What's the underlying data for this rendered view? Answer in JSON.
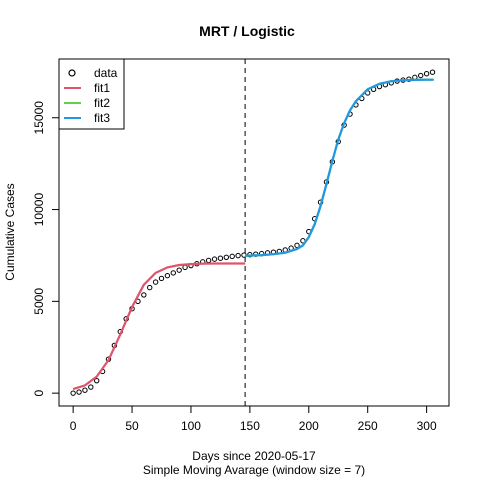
{
  "chart_data": {
    "type": "scatter",
    "title": "MRT / Logistic",
    "xlabel": "Days since 2020-05-17",
    "xlabel2": "Simple Moving Avarage (window size = 7)",
    "ylabel": "Cumulative Cases",
    "xlim": [
      -12,
      319
    ],
    "ylim": [
      -700,
      18200
    ],
    "x_ticks": [
      0,
      50,
      100,
      150,
      200,
      250,
      300
    ],
    "y_ticks": [
      0,
      5000,
      10000,
      15000
    ],
    "breakpoint_x": 146,
    "legend": {
      "position": "top-left",
      "entries": [
        {
          "label": "data",
          "symbol": "circle",
          "color": "#000000"
        },
        {
          "label": "fit1",
          "symbol": "line",
          "color": "#DF536B"
        },
        {
          "label": "fit2",
          "symbol": "line",
          "color": "#61D04F"
        },
        {
          "label": "fit3",
          "symbol": "line",
          "color": "#2297E6"
        }
      ]
    },
    "data": {
      "name": "data",
      "x": [
        0,
        5,
        10,
        15,
        20,
        25,
        30,
        35,
        40,
        45,
        50,
        55,
        60,
        65,
        70,
        75,
        80,
        85,
        90,
        95,
        100,
        105,
        110,
        115,
        120,
        125,
        130,
        135,
        140,
        145,
        150,
        155,
        160,
        165,
        170,
        175,
        180,
        185,
        190,
        195,
        200,
        205,
        210,
        215,
        220,
        225,
        230,
        235,
        240,
        245,
        250,
        255,
        260,
        265,
        270,
        275,
        280,
        285,
        290,
        295,
        300,
        305
      ],
      "y": [
        0,
        60,
        160,
        330,
        680,
        1180,
        1850,
        2600,
        3350,
        4050,
        4600,
        5000,
        5350,
        5750,
        6050,
        6250,
        6400,
        6550,
        6700,
        6850,
        6950,
        7050,
        7150,
        7230,
        7300,
        7350,
        7400,
        7450,
        7490,
        7520,
        7540,
        7570,
        7600,
        7640,
        7680,
        7720,
        7800,
        7900,
        8050,
        8300,
        8800,
        9500,
        10400,
        11500,
        12600,
        13700,
        14600,
        15200,
        15700,
        16050,
        16350,
        16550,
        16700,
        16800,
        16900,
        17000,
        17050,
        17100,
        17200,
        17300,
        17400,
        17480
      ]
    },
    "series": [
      {
        "name": "fit1",
        "color": "#DF536B",
        "x": [
          0,
          10,
          20,
          30,
          40,
          50,
          60,
          70,
          80,
          90,
          100,
          110,
          120,
          130,
          140,
          146
        ],
        "y": [
          220,
          420,
          900,
          1800,
          3200,
          4700,
          5900,
          6550,
          6850,
          6980,
          7030,
          7050,
          7060,
          7060,
          7060,
          7060
        ]
      },
      {
        "name": "fit2",
        "color": "#61D04F",
        "x": [
          146,
          160,
          170,
          180,
          190,
          195,
          200,
          205,
          210,
          215,
          220,
          225,
          230,
          235,
          240,
          250,
          260,
          270,
          280,
          290,
          300,
          306
        ],
        "y": [
          7480,
          7520,
          7570,
          7650,
          7850,
          8050,
          8500,
          9200,
          10200,
          11400,
          12650,
          13800,
          14700,
          15400,
          15900,
          16550,
          16850,
          16990,
          17040,
          17060,
          17070,
          17075
        ]
      },
      {
        "name": "fit3",
        "color": "#2297E6",
        "x": [
          146,
          160,
          170,
          180,
          190,
          195,
          200,
          205,
          210,
          215,
          220,
          225,
          230,
          235,
          240,
          250,
          260,
          270,
          280,
          290,
          300,
          306
        ],
        "y": [
          7480,
          7520,
          7570,
          7650,
          7850,
          8050,
          8500,
          9200,
          10200,
          11400,
          12650,
          13800,
          14700,
          15400,
          15900,
          16550,
          16850,
          16990,
          17040,
          17060,
          17070,
          17075
        ]
      }
    ]
  }
}
